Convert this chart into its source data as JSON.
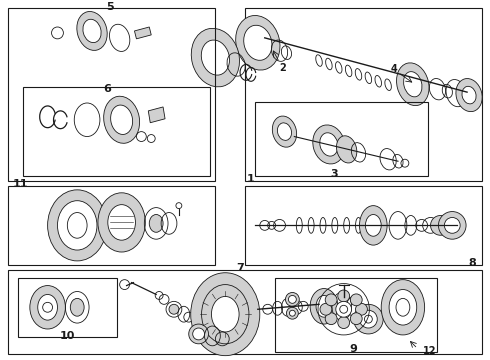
{
  "background_color": "#ffffff",
  "line_color": "#1a1a1a",
  "fig_width": 4.9,
  "fig_height": 3.6,
  "dpi": 100,
  "gray1": "#b0b0b0",
  "gray2": "#d0d0d0",
  "gray3": "#888888"
}
